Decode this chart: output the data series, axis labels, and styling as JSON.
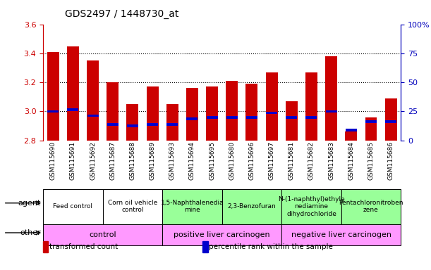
{
  "title": "GDS2497 / 1448730_at",
  "samples": [
    "GSM115690",
    "GSM115691",
    "GSM115692",
    "GSM115687",
    "GSM115688",
    "GSM115689",
    "GSM115693",
    "GSM115694",
    "GSM115695",
    "GSM115680",
    "GSM115696",
    "GSM115697",
    "GSM115681",
    "GSM115682",
    "GSM115683",
    "GSM115684",
    "GSM115685",
    "GSM115686"
  ],
  "bar_values": [
    3.41,
    3.45,
    3.35,
    3.2,
    3.05,
    3.17,
    3.05,
    3.16,
    3.17,
    3.21,
    3.19,
    3.27,
    3.07,
    3.27,
    3.38,
    2.86,
    2.96,
    3.09
  ],
  "percentile_values": [
    3.0,
    3.01,
    2.97,
    2.91,
    2.9,
    2.91,
    2.91,
    2.95,
    2.96,
    2.96,
    2.96,
    2.99,
    2.96,
    2.96,
    3.0,
    2.87,
    2.93,
    2.93
  ],
  "ymin": 2.8,
  "ymax": 3.6,
  "y2min": 0,
  "y2max": 100,
  "yticks": [
    2.8,
    3.0,
    3.2,
    3.4,
    3.6
  ],
  "y2ticks": [
    0,
    25,
    50,
    75,
    100
  ],
  "bar_color": "#cc0000",
  "percentile_color": "#0000cc",
  "bar_bottom": 2.8,
  "agent_groups": [
    {
      "label": "Feed control",
      "start": 0,
      "end": 3,
      "color": "#ffffff"
    },
    {
      "label": "Corn oil vehicle\ncontrol",
      "start": 3,
      "end": 6,
      "color": "#ffffff"
    },
    {
      "label": "1,5-Naphthalenedia\nmine",
      "start": 6,
      "end": 9,
      "color": "#99ff99"
    },
    {
      "label": "2,3-Benzofuran",
      "start": 9,
      "end": 12,
      "color": "#99ff99"
    },
    {
      "label": "N-(1-naphthyl)ethyle\nnediamine\ndihydrochloride",
      "start": 12,
      "end": 15,
      "color": "#99ff99"
    },
    {
      "label": "Pentachloronitroben\nzene",
      "start": 15,
      "end": 18,
      "color": "#99ff99"
    }
  ],
  "other_groups": [
    {
      "label": "control",
      "start": 0,
      "end": 6,
      "color": "#ff99ff"
    },
    {
      "label": "positive liver carcinogen",
      "start": 6,
      "end": 12,
      "color": "#ff99ff"
    },
    {
      "label": "negative liver carcinogen",
      "start": 12,
      "end": 18,
      "color": "#ff99ff"
    }
  ],
  "agent_label": "agent",
  "other_label": "other",
  "legend_items": [
    {
      "label": "transformed count",
      "color": "#cc0000"
    },
    {
      "label": "percentile rank within the sample",
      "color": "#0000cc"
    }
  ],
  "tick_color_left": "#cc0000",
  "tick_color_right": "#0000bb",
  "bar_width": 0.6,
  "figsize": [
    6.11,
    3.84
  ],
  "dpi": 100
}
